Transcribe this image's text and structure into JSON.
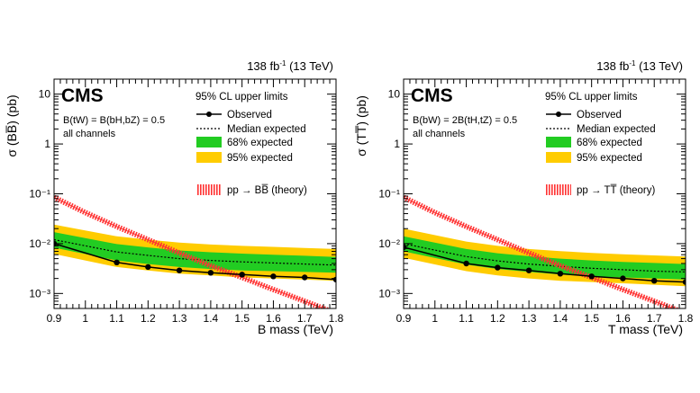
{
  "chart_data": [
    {
      "type": "line",
      "experiment": "CMS",
      "luminosity_label": "138 fb",
      "luminosity_sup": "-1",
      "energy_label": " (13 TeV)",
      "condition_line1": "B(tW) = B(bH,bZ) = 0.5",
      "condition_line2": "all channels",
      "legend_title": "95% CL upper limits",
      "legend": {
        "observed": "Observed",
        "median": "Median expected",
        "band68": "68% expected",
        "band95": "95% expected",
        "theory": "pp → BB̅ (theory)"
      },
      "xlabel": "B mass (TeV)",
      "ylabel": "σ (BB̅) (pb)",
      "xlim": [
        0.9,
        1.8
      ],
      "ylim": [
        0.0005,
        20
      ],
      "yscale": "log",
      "xticks": [
        "0.9",
        "1",
        "1.1",
        "1.2",
        "1.3",
        "1.4",
        "1.5",
        "1.6",
        "1.7",
        "1.8"
      ],
      "yticks": [
        "10⁻³",
        "10⁻²",
        "10⁻¹",
        "1",
        "10"
      ],
      "x": [
        0.9,
        1.1,
        1.2,
        1.3,
        1.4,
        1.5,
        1.6,
        1.7,
        1.8
      ],
      "observed": [
        0.01,
        0.0042,
        0.0034,
        0.0029,
        0.0026,
        0.0024,
        0.0022,
        0.0021,
        0.0019
      ],
      "expected": [
        0.012,
        0.0068,
        0.0058,
        0.005,
        0.0046,
        0.0043,
        0.0041,
        0.0039,
        0.0037
      ],
      "band68_low": [
        0.0083,
        0.0046,
        0.0039,
        0.0034,
        0.0031,
        0.0029,
        0.0028,
        0.0027,
        0.0026
      ],
      "band68_high": [
        0.017,
        0.0098,
        0.0084,
        0.0073,
        0.0067,
        0.0063,
        0.006,
        0.0057,
        0.0054
      ],
      "band95_low": [
        0.0062,
        0.0034,
        0.0029,
        0.0025,
        0.0023,
        0.0021,
        0.002,
        0.0019,
        0.0018
      ],
      "band95_high": [
        0.024,
        0.014,
        0.012,
        0.0105,
        0.0096,
        0.009,
        0.0086,
        0.0082,
        0.0078
      ],
      "theory_x": [
        0.9,
        1.0,
        1.1,
        1.2,
        1.3,
        1.4,
        1.5,
        1.6,
        1.7,
        1.8
      ],
      "theory": [
        0.085,
        0.042,
        0.022,
        0.012,
        0.0065,
        0.0036,
        0.0021,
        0.0012,
        0.0007,
        0.0004
      ],
      "grid": false,
      "legend_placement": "top-right",
      "colors": {
        "band68": "#22cc22",
        "band95": "#ffcc00",
        "theory": "#ff3333",
        "observed": "#000000"
      }
    },
    {
      "type": "line",
      "experiment": "CMS",
      "luminosity_label": "138 fb",
      "luminosity_sup": "-1",
      "energy_label": " (13 TeV)",
      "condition_line1": "B(bW) = 2B(tH,tZ) = 0.5",
      "condition_line2": "all channels",
      "legend_title": "95% CL upper limits",
      "legend": {
        "observed": "Observed",
        "median": "Median expected",
        "band68": "68% expected",
        "band95": "95% expected",
        "theory": "pp → TT̅ (theory)"
      },
      "xlabel": "T mass (TeV)",
      "ylabel": "σ (TT̅) (pb)",
      "xlim": [
        0.9,
        1.8
      ],
      "ylim": [
        0.0005,
        20
      ],
      "yscale": "log",
      "xticks": [
        "0.9",
        "1",
        "1.1",
        "1.2",
        "1.3",
        "1.4",
        "1.5",
        "1.6",
        "1.7",
        "1.8"
      ],
      "yticks": [
        "10⁻³",
        "10⁻²",
        "10⁻¹",
        "1",
        "10"
      ],
      "x": [
        0.9,
        1.1,
        1.2,
        1.3,
        1.4,
        1.5,
        1.6,
        1.7,
        1.8
      ],
      "observed": [
        0.0085,
        0.004,
        0.0033,
        0.0029,
        0.0025,
        0.0022,
        0.002,
        0.0018,
        0.0017
      ],
      "expected": [
        0.01,
        0.0055,
        0.0045,
        0.0039,
        0.0035,
        0.0032,
        0.003,
        0.0028,
        0.0027
      ],
      "band68_low": [
        0.007,
        0.0038,
        0.0031,
        0.0027,
        0.0024,
        0.0022,
        0.0021,
        0.002,
        0.0019
      ],
      "band68_high": [
        0.014,
        0.0078,
        0.0064,
        0.0056,
        0.005,
        0.0046,
        0.0043,
        0.0041,
        0.0039
      ],
      "band95_low": [
        0.0052,
        0.0028,
        0.0023,
        0.002,
        0.0018,
        0.0017,
        0.0016,
        0.0015,
        0.0014
      ],
      "band95_high": [
        0.02,
        0.011,
        0.009,
        0.0078,
        0.0071,
        0.0065,
        0.0061,
        0.0058,
        0.0055
      ],
      "theory_x": [
        0.9,
        1.0,
        1.1,
        1.2,
        1.3,
        1.4,
        1.5,
        1.6,
        1.7,
        1.8
      ],
      "theory": [
        0.085,
        0.042,
        0.022,
        0.012,
        0.0065,
        0.0036,
        0.0021,
        0.0012,
        0.0007,
        0.0004
      ],
      "grid": false,
      "legend_placement": "top-right",
      "colors": {
        "band68": "#22cc22",
        "band95": "#ffcc00",
        "theory": "#ff3333",
        "observed": "#000000"
      }
    }
  ]
}
